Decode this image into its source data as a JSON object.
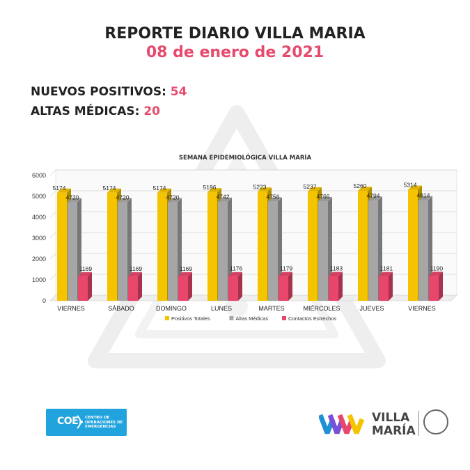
{
  "header": {
    "title": "REPORTE DIARIO VILLA MARIA",
    "date": "08 de enero de 2021"
  },
  "stats": {
    "new_positives_label": "NUEVOS POSITIVOS:",
    "new_positives_value": "54",
    "discharges_label": "ALTAS MÉDICAS:",
    "discharges_value": "20"
  },
  "chart_data": {
    "type": "bar",
    "title": "SEMANA EPIDEMIOLÓGICA VILLA MARÍA",
    "categories": [
      "VIERNES",
      "SÁBADO",
      "DOMINGO",
      "LUNES",
      "MARTES",
      "MIÉRCOLES",
      "JUEVES",
      "VIERNES"
    ],
    "series": [
      {
        "name": "Positivos Totales",
        "color": "#f5c400",
        "values": [
          5174,
          5174,
          5174,
          5196,
          5223,
          5237,
          5260,
          5314
        ]
      },
      {
        "name": "Altas Médicas",
        "color": "#a6a6a6",
        "values": [
          4720,
          4720,
          4720,
          4742,
          4756,
          4766,
          4794,
          4814
        ]
      },
      {
        "name": "Contactos Estrechos",
        "color": "#e8466b",
        "values": [
          1169,
          1169,
          1169,
          1176,
          1179,
          1183,
          1181,
          1190
        ]
      }
    ],
    "ylim": [
      0,
      6000
    ],
    "yticks": [
      0,
      1000,
      2000,
      3000,
      4000,
      5000,
      6000
    ],
    "grid": true,
    "legend": "bottom"
  },
  "footer": {
    "coe_logo_text": "COE",
    "coe_subtitle": [
      "CENTRO DE",
      "OPERACIONES DE",
      "EMERGENCIAS"
    ],
    "city_logo_line1": "VILLA",
    "city_logo_line2": "MARÍA"
  }
}
